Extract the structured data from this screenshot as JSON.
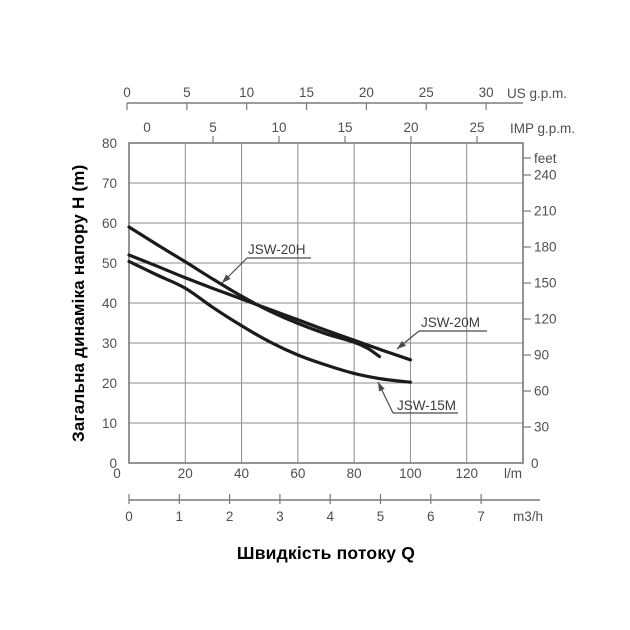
{
  "chart_data": {
    "type": "line",
    "title": "",
    "xlabel": "Швидкість потоку Q",
    "ylabel": "Загальна динаміка напору H (m)",
    "grid": true,
    "legend_position": "inline-annotations",
    "colors": {
      "curve": "#1b1b1b",
      "grid": "#8c8c8c",
      "frame": "#7a7a7a",
      "tick_text": "#4f4f4f",
      "annotation_text": "#3c3c3c",
      "leader": "#4a4a4a"
    },
    "axes": {
      "left_m": {
        "label": "H (m)",
        "ticks": [
          80,
          70,
          60,
          50,
          40,
          30,
          20,
          10,
          0
        ],
        "range": [
          0,
          80
        ]
      },
      "right_feet": {
        "label": "feet",
        "ticks": [
          240,
          210,
          180,
          150,
          120,
          90,
          60,
          30,
          0
        ]
      },
      "top_us": {
        "label": "US g.p.m.",
        "ticks": [
          0,
          5,
          10,
          15,
          20,
          25,
          30
        ],
        "range": [
          0,
          30
        ]
      },
      "top_imp": {
        "label": "IMP g.p.m.",
        "ticks": [
          0,
          5,
          10,
          15,
          20,
          25
        ],
        "range": [
          0,
          25
        ]
      },
      "bottom_lm": {
        "label": "l/m",
        "ticks": [
          0,
          20,
          40,
          60,
          80,
          100,
          120
        ],
        "range": [
          0,
          140
        ]
      },
      "bottom_m3h": {
        "label": "m3/h",
        "ticks": [
          0,
          1,
          2,
          3,
          4,
          5,
          6,
          7
        ],
        "range": [
          0,
          7
        ]
      }
    },
    "series": [
      {
        "name": "JSW-20H",
        "points_lm_m": [
          [
            0,
            59
          ],
          [
            10,
            54.6
          ],
          [
            20,
            50.3
          ],
          [
            30,
            45.9
          ],
          [
            40,
            41.7
          ],
          [
            50,
            38
          ],
          [
            60,
            34.9
          ],
          [
            70,
            32.3
          ],
          [
            80,
            30.2
          ],
          [
            85,
            28.6
          ],
          [
            89,
            26.6
          ]
        ]
      },
      {
        "name": "JSW-20M",
        "points_lm_m": [
          [
            0,
            52
          ],
          [
            10,
            49.2
          ],
          [
            20,
            46.3
          ],
          [
            30,
            43.6
          ],
          [
            40,
            41
          ],
          [
            50,
            38.4
          ],
          [
            60,
            35.8
          ],
          [
            70,
            33.2
          ],
          [
            80,
            30.7
          ],
          [
            90,
            28.2
          ],
          [
            100,
            25.8
          ]
        ]
      },
      {
        "name": "JSW-15M",
        "points_lm_m": [
          [
            0,
            50.4
          ],
          [
            10,
            47
          ],
          [
            20,
            43.7
          ],
          [
            30,
            38.8
          ],
          [
            40,
            34.3
          ],
          [
            50,
            30.3
          ],
          [
            60,
            27
          ],
          [
            70,
            24.5
          ],
          [
            80,
            22.4
          ],
          [
            90,
            21
          ],
          [
            100,
            20.2
          ]
        ]
      }
    ],
    "annotations": [
      {
        "text": "JSW-20H",
        "tx": 248,
        "ty": 254,
        "ux1": 247,
        "ux2": 311,
        "uy": 258,
        "ax": 222,
        "ay": 283
      },
      {
        "text": "JSW-20M",
        "tx": 421,
        "ty": 327,
        "ux1": 419,
        "ux2": 487,
        "uy": 331,
        "ax": 397,
        "ay": 349
      },
      {
        "text": "JSW-15M",
        "tx": 397,
        "ty": 410,
        "ux1": 393,
        "ux2": 458,
        "uy": 413,
        "ax": 378,
        "ay": 382
      }
    ]
  }
}
